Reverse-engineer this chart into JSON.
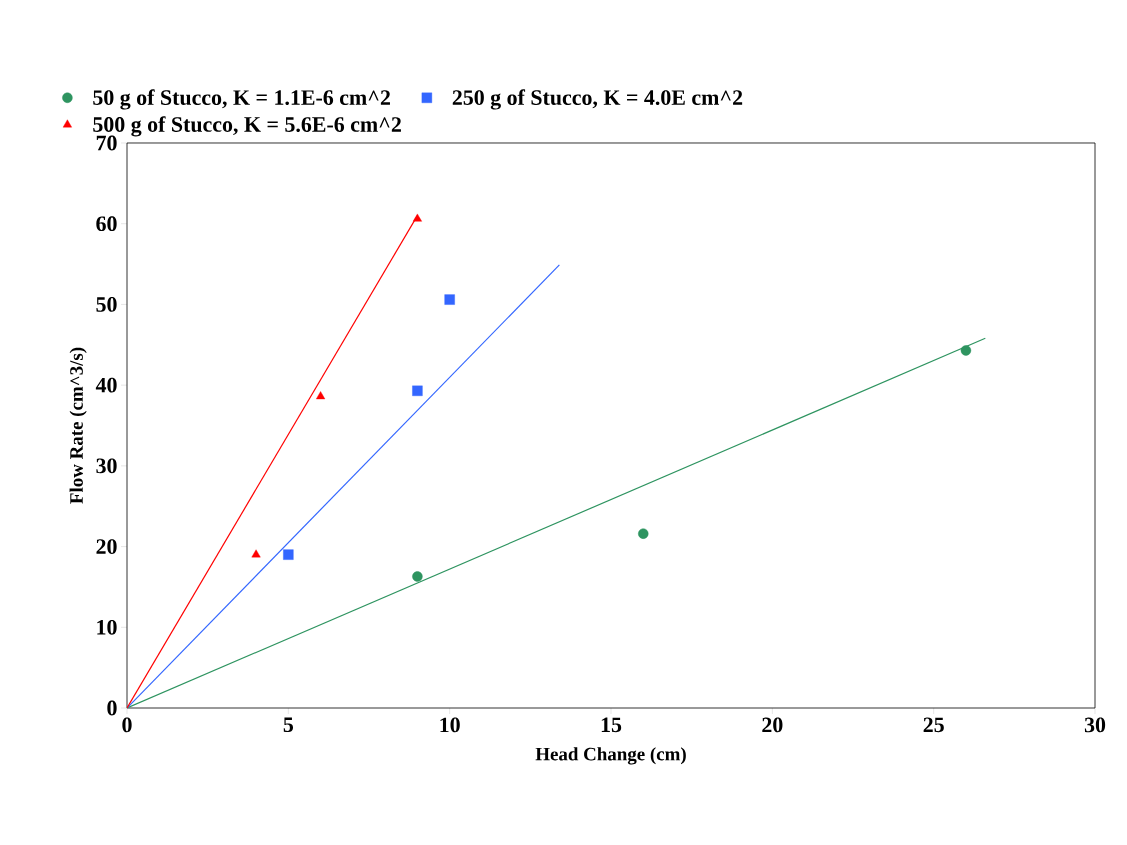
{
  "chart_data": {
    "type": "scatter",
    "xlabel": "Head Change (cm)",
    "ylabel": "Flow Rate (cm^3/s)",
    "xlim": [
      0,
      30
    ],
    "ylim": [
      0,
      70
    ],
    "xticks": [
      0,
      5,
      10,
      15,
      20,
      25,
      30
    ],
    "yticks": [
      0,
      10,
      20,
      30,
      40,
      50,
      60,
      70
    ],
    "grid": false,
    "legend": "top",
    "series": [
      {
        "name": "50 g of Stucco, K = 1.1E-6 cm^2",
        "color": "#2e9460",
        "marker": "circle",
        "x": [
          9,
          16,
          26
        ],
        "values": [
          16.3,
          21.6,
          44.3
        ]
      },
      {
        "name": "250 g of Stucco, K = 4.0E cm^2",
        "color": "#3366ff",
        "marker": "square",
        "x": [
          5,
          9,
          10
        ],
        "values": [
          19,
          39.3,
          50.6
        ]
      },
      {
        "name": "500 g of Stucco, K = 5.6E-6 cm^2",
        "color": "#ff0000",
        "marker": "triangle",
        "x": [
          4,
          6,
          9
        ],
        "values": [
          19,
          38.6,
          60.6
        ]
      },
      {
        "type": "line",
        "color": "#2e9460",
        "marker": "none",
        "x": [
          0,
          26.6
        ],
        "values": [
          0,
          45.8
        ]
      },
      {
        "type": "line",
        "color": "#3366ff",
        "marker": "none",
        "x": [
          0,
          13.4
        ],
        "values": [
          0,
          54.9
        ]
      },
      {
        "type": "line",
        "color": "#ff0000",
        "marker": "none",
        "x": [
          0,
          9
        ],
        "values": [
          0,
          61
        ]
      }
    ]
  }
}
